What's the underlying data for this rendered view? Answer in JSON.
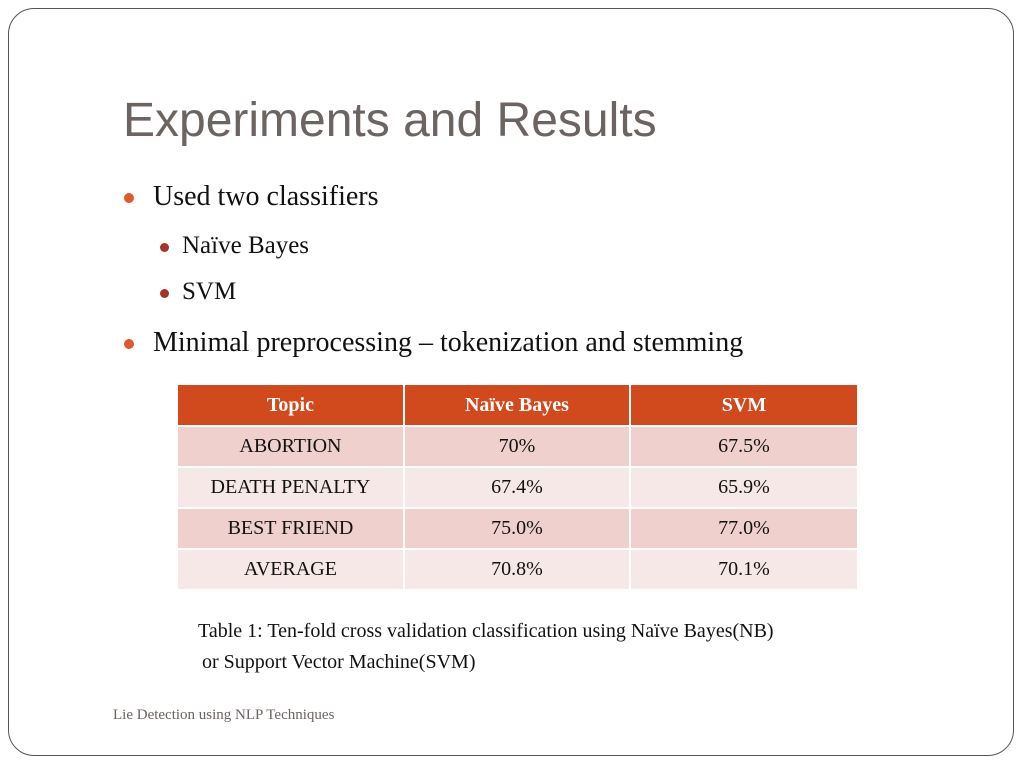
{
  "slide": {
    "title": "Experiments and Results",
    "bullets": [
      {
        "level": 1,
        "text": "Used two classifiers"
      },
      {
        "level": 2,
        "text": "Naïve Bayes"
      },
      {
        "level": 2,
        "text": "SVM"
      },
      {
        "level": 1,
        "text": "Minimal preprocessing – tokenization and stemming"
      }
    ],
    "table": {
      "headers": [
        "Topic",
        "Naïve Bayes",
        "SVM"
      ],
      "rows": [
        [
          "ABORTION",
          "70%",
          "67.5%"
        ],
        [
          "DEATH PENALTY",
          "67.4%",
          "65.9%"
        ],
        [
          "BEST FRIEND",
          "75.0%",
          "77.0%"
        ],
        [
          "AVERAGE",
          "70.8%",
          "70.1%"
        ]
      ]
    },
    "caption": {
      "line1": "Table 1: Ten-fold cross validation classification using Naïve Bayes(NB)",
      "line2": "or Support Vector Machine(SVM)"
    },
    "footer": "Lie Detection using NLP Techniques"
  },
  "colors": {
    "title": "#6b6461",
    "bullet_level1": "#e0582e",
    "bullet_level2": "#a8322a",
    "table_header": "#d04a1e",
    "table_row_dark": "#efd0cc",
    "table_row_light": "#f6e8e6"
  }
}
